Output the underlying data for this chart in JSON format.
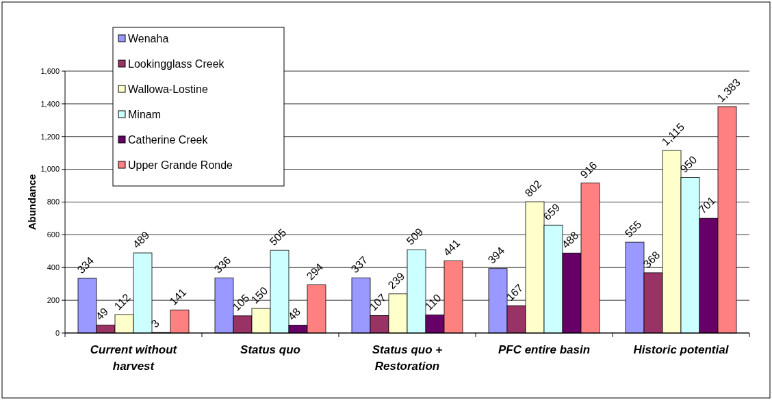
{
  "chart_data": {
    "type": "bar",
    "ylabel": "Abundance",
    "categories": [
      "Current without harvest",
      "Status quo",
      "Status quo + Restoration",
      "PFC entire basin",
      "Historic potential"
    ],
    "series": [
      {
        "name": "Wenaha",
        "color": "#9999ff",
        "values": [
          334,
          336,
          337,
          394,
          555
        ]
      },
      {
        "name": "Lookingglass Creek",
        "color": "#993366",
        "values": [
          49,
          105,
          107,
          167,
          368
        ]
      },
      {
        "name": "Wallowa-Lostine",
        "color": "#ffffcc",
        "values": [
          112,
          150,
          239,
          802,
          1115
        ],
        "value_labels": [
          "112",
          "150",
          "239",
          "802",
          "1,115"
        ]
      },
      {
        "name": "Minam",
        "color": "#ccffff",
        "values": [
          489,
          505,
          509,
          659,
          950
        ]
      },
      {
        "name": "Catherine Creek",
        "color": "#660066",
        "values": [
          3,
          48,
          110,
          488,
          701
        ]
      },
      {
        "name": "Upper Grande Ronde",
        "color": "#ff8080",
        "values": [
          141,
          294,
          441,
          916,
          1383
        ],
        "value_labels": [
          "141",
          "294",
          "441",
          "916",
          "1,383"
        ]
      }
    ],
    "ylim": [
      0,
      1600
    ],
    "yticks": [
      0,
      200,
      400,
      600,
      800,
      {
        "value": 1000,
        "label": "1,000"
      },
      {
        "value": 1200,
        "label": "1,200"
      },
      {
        "value": 1400,
        "label": "1,400"
      },
      {
        "value": 1600,
        "label": "1,600"
      }
    ],
    "grid": "y",
    "legend": "top left",
    "data_labels": true
  }
}
